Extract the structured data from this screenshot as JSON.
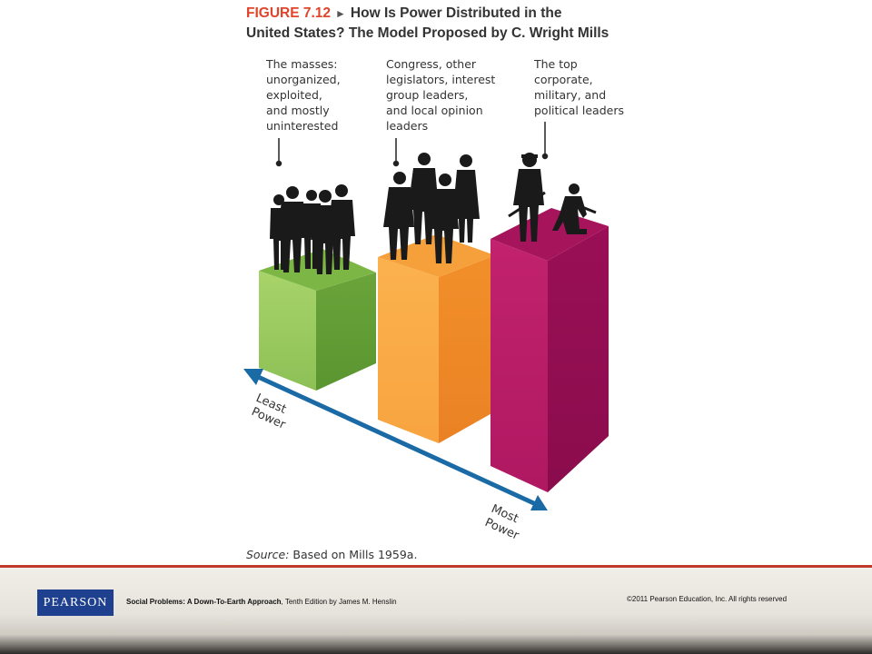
{
  "figure": {
    "number": "FIGURE 7.12",
    "arrow": "►",
    "title_line1": "How Is Power Distributed in the",
    "title_line2": "United States? The Model Proposed by C. Wright Mills"
  },
  "tiers": [
    {
      "label": "The masses:\nunorganized,\nexploited,\nand mostly\nuninterested",
      "color": "#7ab648"
    },
    {
      "label": "Congress, other\nlegislators, interest\ngroup leaders,\nand local opinion\nleaders",
      "color": "#f59a35"
    },
    {
      "label": "The top\ncorporate,\nmilitary, and\npolitical leaders",
      "color": "#b0185f"
    }
  ],
  "axis": {
    "least_line1": "Least",
    "least_line2": "Power",
    "most_line1": "Most",
    "most_line2": "Power",
    "color": "#1a6aa6"
  },
  "source": {
    "label": "Source:",
    "text": " Based on Mills 1959a."
  },
  "footer": {
    "logo": "PEARSON",
    "book_title": "Social Problems: A Down-To-Earth Approach",
    "book_rest": ", Tenth Edition by James M. Henslin",
    "copyright": "©2011 Pearson Education, Inc.  All rights reserved"
  }
}
